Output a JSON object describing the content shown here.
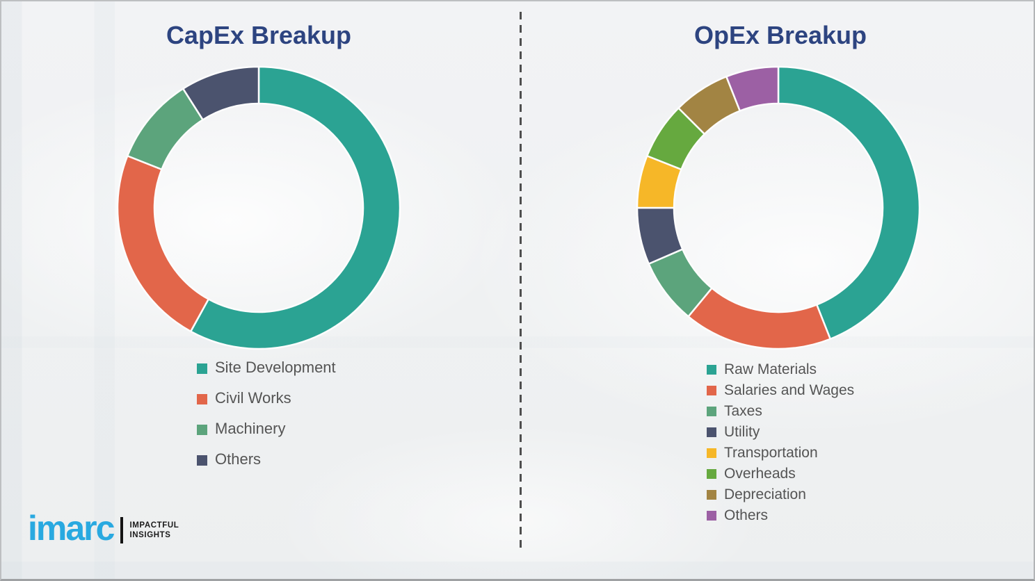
{
  "page": {
    "background_color": "#f0f1f3",
    "divider_color": "#4e4e4e",
    "title_color": "#2d4480",
    "legend_text_color": "#545454"
  },
  "charts": {
    "capex": {
      "title": "CapEx Breakup"
    },
    "opex": {
      "title": "OpEx Breakup"
    }
  },
  "chart_data": [
    {
      "id": "capex",
      "type": "pie",
      "variant": "donut",
      "title": "CapEx Breakup",
      "categories": [
        "Site Development",
        "Civil Works",
        "Machinery",
        "Others"
      ],
      "values": [
        58,
        23,
        10,
        9
      ],
      "colors": [
        "#2ba393",
        "#e2664a",
        "#5ca47c",
        "#4b536e"
      ],
      "units": "percent (estimated from arc angles)",
      "start_angle_deg": 0,
      "direction": "clockwise",
      "inner_radius_ratio": 0.74,
      "legend_position": "below-left",
      "data_labels": false
    },
    {
      "id": "opex",
      "type": "pie",
      "variant": "donut",
      "title": "OpEx Breakup",
      "categories": [
        "Raw Materials",
        "Salaries and Wages",
        "Taxes",
        "Utility",
        "Transportation",
        "Overheads",
        "Depreciation",
        "Others"
      ],
      "values": [
        44,
        17,
        7.5,
        6.5,
        6,
        6.5,
        6.5,
        6
      ],
      "colors": [
        "#2ba393",
        "#e2664a",
        "#5ca47c",
        "#4b536e",
        "#f6b728",
        "#66a93f",
        "#a28443",
        "#9c60a4"
      ],
      "units": "percent (estimated from arc angles)",
      "start_angle_deg": 0,
      "direction": "clockwise",
      "inner_radius_ratio": 0.74,
      "legend_position": "below-left",
      "data_labels": false
    }
  ],
  "logo": {
    "wordmark": "imarc",
    "wordmark_color": "#29a9e0",
    "tagline_line1": "IMPACTFUL",
    "tagline_line2": "INSIGHTS"
  }
}
